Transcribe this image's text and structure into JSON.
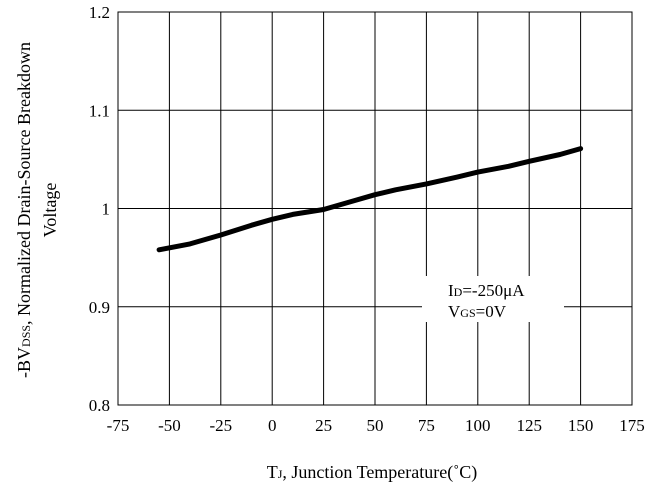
{
  "chart_data": {
    "type": "line",
    "title": "",
    "xlabel": {
      "prefix": "T",
      "sub": "J",
      "suffix": ", Junction Temperature(˚C)"
    },
    "ylabel": {
      "line1_prefix": "-BV",
      "line1_sub": "DSS",
      "line1_suffix": ", Normalized Drain-Source Breakdown",
      "line2": "Voltage"
    },
    "xlim": [
      -75,
      175
    ],
    "ylim": [
      0.8,
      1.2
    ],
    "xticks": [
      -75,
      -50,
      -25,
      0,
      25,
      50,
      75,
      100,
      125,
      150,
      175
    ],
    "xtick_labels": [
      "-75",
      "-50",
      "-25",
      "0",
      "25",
      "50",
      "75",
      "100",
      "125",
      "150",
      "175"
    ],
    "yticks": [
      0.8,
      0.9,
      1.0,
      1.1,
      1.2
    ],
    "ytick_labels": [
      "0.8",
      "0.9",
      "1",
      "1.1",
      "1.2"
    ],
    "grid": true,
    "series": [
      {
        "x": [
          -55,
          -40,
          -25,
          -10,
          0,
          10,
          25,
          40,
          50,
          60,
          75,
          90,
          100,
          115,
          125,
          140,
          150
        ],
        "y": [
          0.958,
          0.964,
          0.973,
          0.983,
          0.989,
          0.994,
          0.999,
          1.008,
          1.014,
          1.019,
          1.025,
          1.032,
          1.037,
          1.043,
          1.048,
          1.055,
          1.061
        ]
      }
    ],
    "annotations": [
      {
        "prefix": "I",
        "sub": "D",
        "suffix": "=-250μA"
      },
      {
        "prefix": "V",
        "sub": "GS",
        "suffix": "=0V"
      }
    ],
    "colors": {
      "line": "#000000",
      "grid": "#000000",
      "background": "#ffffff"
    }
  }
}
